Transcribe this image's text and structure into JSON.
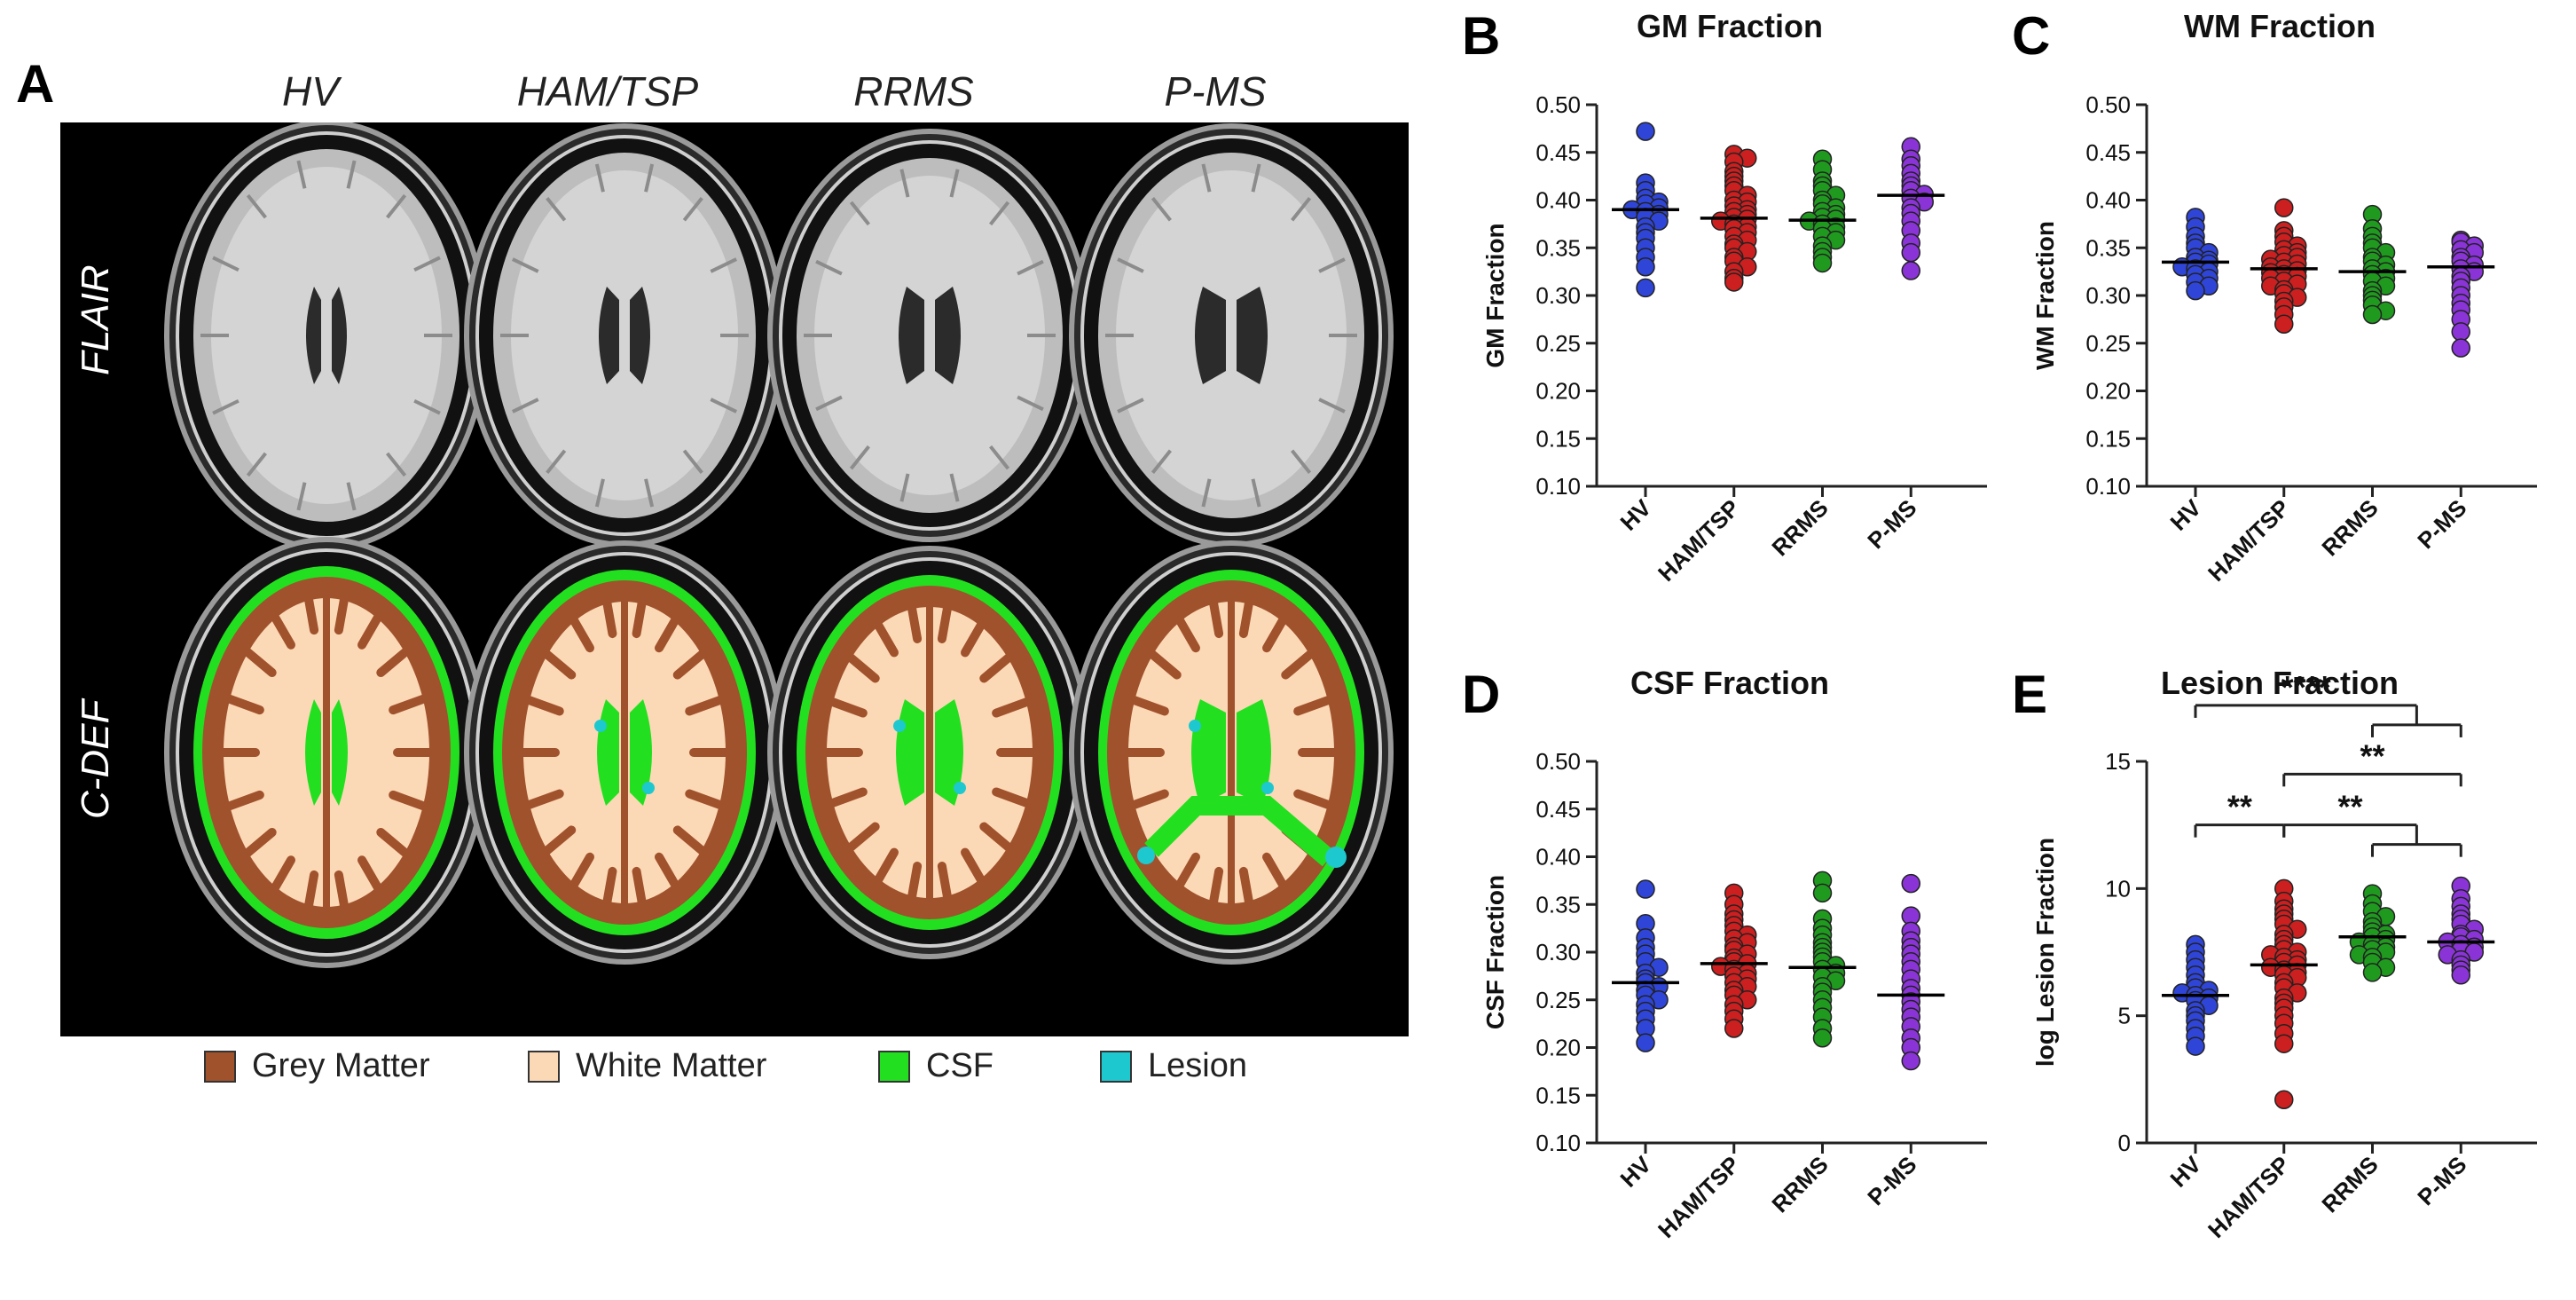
{
  "panel_a": {
    "letter": "A",
    "columns": [
      "HV",
      "HAM/TSP",
      "RRMS",
      "P-MS"
    ],
    "rows": [
      "FLAIR",
      "C-DEF"
    ],
    "legend": [
      {
        "label": "Grey Matter",
        "color": "#a0522d"
      },
      {
        "label": "White Matter",
        "color": "#fcd9b6"
      },
      {
        "label": "CSF",
        "color": "#22e01f"
      },
      {
        "label": "Lesion",
        "color": "#1ec8cf"
      }
    ]
  },
  "chart_data": [
    {
      "panel": "B",
      "type": "scatter",
      "title": "GM Fraction",
      "ylabel": "GM Fraction",
      "categories": [
        "HV",
        "HAM/TSP",
        "RRMS",
        "P-MS"
      ],
      "ylim": [
        0.1,
        0.5
      ],
      "yticks": [
        "0.10",
        "0.15",
        "0.20",
        "0.25",
        "0.30",
        "0.35",
        "0.40",
        "0.45",
        "0.50"
      ],
      "colors": [
        "#2f45d8",
        "#cc1f1f",
        "#1f9a1f",
        "#8a34d8"
      ],
      "medians": [
        0.39,
        0.381,
        0.379,
        0.405
      ],
      "series": [
        {
          "values": [
            0.472,
            0.418,
            0.41,
            0.402,
            0.398,
            0.396,
            0.392,
            0.39,
            0.388,
            0.385,
            0.382,
            0.378,
            0.372,
            0.366,
            0.36,
            0.35,
            0.34,
            0.33,
            0.308
          ]
        },
        {
          "values": [
            0.448,
            0.444,
            0.44,
            0.43,
            0.425,
            0.42,
            0.415,
            0.41,
            0.405,
            0.4,
            0.398,
            0.394,
            0.39,
            0.388,
            0.385,
            0.382,
            0.38,
            0.378,
            0.375,
            0.372,
            0.37,
            0.366,
            0.362,
            0.358,
            0.354,
            0.35,
            0.346,
            0.34,
            0.336,
            0.33,
            0.325,
            0.318,
            0.314
          ]
        },
        {
          "values": [
            0.443,
            0.432,
            0.42,
            0.415,
            0.41,
            0.405,
            0.4,
            0.396,
            0.392,
            0.388,
            0.385,
            0.382,
            0.38,
            0.378,
            0.375,
            0.372,
            0.37,
            0.366,
            0.362,
            0.358,
            0.352,
            0.346,
            0.34,
            0.334
          ]
        },
        {
          "values": [
            0.456,
            0.443,
            0.436,
            0.428,
            0.42,
            0.415,
            0.41,
            0.406,
            0.402,
            0.398,
            0.392,
            0.386,
            0.378,
            0.368,
            0.355,
            0.345,
            0.326
          ]
        }
      ]
    },
    {
      "panel": "C",
      "type": "scatter",
      "title": "WM Fraction",
      "ylabel": "WM Fraction",
      "categories": [
        "HV",
        "HAM/TSP",
        "RRMS",
        "P-MS"
      ],
      "ylim": [
        0.1,
        0.5
      ],
      "yticks": [
        "0.10",
        "0.15",
        "0.20",
        "0.25",
        "0.30",
        "0.35",
        "0.40",
        "0.45",
        "0.50"
      ],
      "colors": [
        "#2f45d8",
        "#cc1f1f",
        "#1f9a1f",
        "#8a34d8"
      ],
      "medians": [
        0.335,
        0.328,
        0.325,
        0.33
      ],
      "series": [
        {
          "values": [
            0.382,
            0.372,
            0.362,
            0.355,
            0.35,
            0.345,
            0.34,
            0.337,
            0.335,
            0.333,
            0.33,
            0.328,
            0.325,
            0.322,
            0.318,
            0.314,
            0.31,
            0.305
          ]
        },
        {
          "values": [
            0.392,
            0.368,
            0.362,
            0.356,
            0.352,
            0.348,
            0.345,
            0.342,
            0.34,
            0.338,
            0.335,
            0.333,
            0.33,
            0.328,
            0.326,
            0.324,
            0.322,
            0.32,
            0.318,
            0.315,
            0.312,
            0.31,
            0.306,
            0.302,
            0.298,
            0.294,
            0.288,
            0.28,
            0.27
          ]
        },
        {
          "values": [
            0.385,
            0.37,
            0.362,
            0.355,
            0.35,
            0.345,
            0.34,
            0.336,
            0.332,
            0.328,
            0.325,
            0.322,
            0.318,
            0.315,
            0.31,
            0.305,
            0.3,
            0.295,
            0.29,
            0.284,
            0.28
          ]
        },
        {
          "values": [
            0.358,
            0.356,
            0.352,
            0.348,
            0.345,
            0.34,
            0.336,
            0.332,
            0.328,
            0.325,
            0.32,
            0.315,
            0.308,
            0.3,
            0.292,
            0.285,
            0.275,
            0.262,
            0.245
          ]
        }
      ]
    },
    {
      "panel": "D",
      "type": "scatter",
      "title": "CSF Fraction",
      "ylabel": "CSF Fraction",
      "categories": [
        "HV",
        "HAM/TSP",
        "RRMS",
        "P-MS"
      ],
      "ylim": [
        0.1,
        0.5
      ],
      "yticks": [
        "0.10",
        "0.15",
        "0.20",
        "0.25",
        "0.30",
        "0.35",
        "0.40",
        "0.45",
        "0.50"
      ],
      "colors": [
        "#2f45d8",
        "#cc1f1f",
        "#1f9a1f",
        "#8a34d8"
      ],
      "medians": [
        0.268,
        0.288,
        0.284,
        0.255
      ],
      "series": [
        {
          "values": [
            0.366,
            0.33,
            0.315,
            0.305,
            0.298,
            0.29,
            0.284,
            0.278,
            0.272,
            0.268,
            0.264,
            0.26,
            0.255,
            0.25,
            0.245,
            0.238,
            0.23,
            0.22,
            0.205
          ]
        },
        {
          "values": [
            0.362,
            0.35,
            0.34,
            0.334,
            0.328,
            0.322,
            0.318,
            0.314,
            0.31,
            0.306,
            0.302,
            0.298,
            0.294,
            0.29,
            0.288,
            0.285,
            0.282,
            0.278,
            0.275,
            0.272,
            0.268,
            0.264,
            0.26,
            0.255,
            0.25,
            0.245,
            0.238,
            0.23,
            0.22
          ]
        },
        {
          "values": [
            0.375,
            0.362,
            0.335,
            0.325,
            0.318,
            0.31,
            0.305,
            0.3,
            0.295,
            0.29,
            0.286,
            0.282,
            0.278,
            0.274,
            0.27,
            0.264,
            0.258,
            0.25,
            0.242,
            0.232,
            0.22,
            0.21
          ]
        },
        {
          "values": [
            0.372,
            0.338,
            0.322,
            0.312,
            0.305,
            0.298,
            0.29,
            0.282,
            0.272,
            0.262,
            0.255,
            0.248,
            0.24,
            0.232,
            0.222,
            0.21,
            0.2,
            0.186
          ]
        }
      ]
    },
    {
      "panel": "E",
      "type": "scatter",
      "title": "Lesion Fraction",
      "ylabel": "log Lesion Fraction",
      "categories": [
        "HV",
        "HAM/TSP",
        "RRMS",
        "P-MS"
      ],
      "ylim": [
        0,
        15
      ],
      "yticks": [
        "0",
        "5",
        "10",
        "15"
      ],
      "colors": [
        "#2f45d8",
        "#cc1f1f",
        "#1f9a1f",
        "#8a34d8"
      ],
      "medians": [
        5.8,
        7.0,
        8.1,
        7.9
      ],
      "series": [
        {
          "values": [
            7.8,
            7.5,
            7.2,
            6.9,
            6.6,
            6.3,
            6.1,
            6.0,
            5.9,
            5.8,
            5.7,
            5.6,
            5.4,
            5.2,
            5.0,
            4.8,
            4.5,
            4.2,
            3.8
          ]
        },
        {
          "values": [
            10.0,
            9.5,
            9.2,
            9.0,
            8.8,
            8.6,
            8.4,
            8.2,
            8.0,
            7.8,
            7.6,
            7.5,
            7.4,
            7.3,
            7.2,
            7.1,
            7.0,
            6.9,
            6.8,
            6.7,
            6.6,
            6.5,
            6.3,
            6.1,
            5.9,
            5.7,
            5.5,
            5.3,
            5.0,
            4.7,
            4.3,
            3.9,
            1.7
          ]
        },
        {
          "values": [
            9.8,
            9.4,
            9.1,
            8.9,
            8.7,
            8.5,
            8.3,
            8.2,
            8.1,
            8.0,
            7.9,
            7.8,
            7.7,
            7.6,
            7.5,
            7.4,
            7.3,
            7.1,
            6.9,
            6.7
          ]
        },
        {
          "values": [
            10.1,
            9.6,
            9.3,
            9.0,
            8.8,
            8.6,
            8.4,
            8.2,
            8.1,
            8.0,
            7.9,
            7.8,
            7.7,
            7.6,
            7.5,
            7.4,
            7.2,
            7.0,
            6.8,
            6.6
          ]
        }
      ],
      "significance": [
        {
          "from": 0,
          "to": [
            2,
            3
          ],
          "label": "****",
          "level": 17.2
        },
        {
          "from": 1,
          "to": [
            3
          ],
          "label": "**",
          "level": 14.5
        },
        {
          "from": 0,
          "to": [
            1
          ],
          "label": "**",
          "level": 12.5
        },
        {
          "from": 1,
          "to": [
            2,
            3
          ],
          "label": "**",
          "level": 12.5
        }
      ]
    }
  ]
}
